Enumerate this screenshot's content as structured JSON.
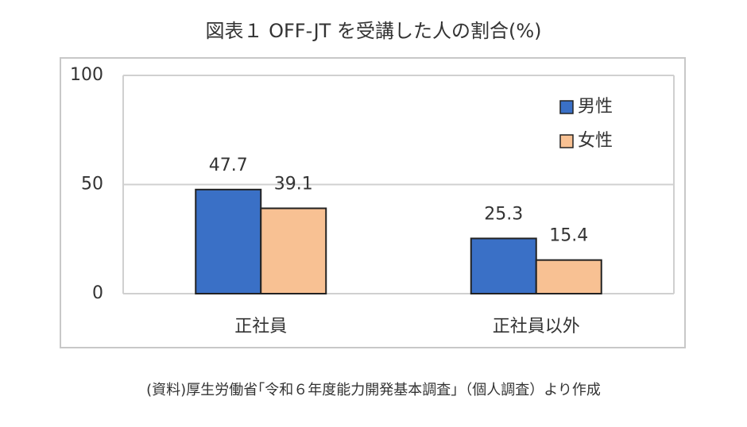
{
  "chart_data": {
    "type": "bar",
    "title": "図表１ OFF-JT を受講した人の割合(%)",
    "categories": [
      "正社員",
      "正社員以外"
    ],
    "series": [
      {
        "name": "男性",
        "color": "#3a70c6",
        "values": [
          47.7,
          25.3
        ]
      },
      {
        "name": "女性",
        "color": "#f8c193",
        "values": [
          39.1,
          15.4
        ]
      }
    ],
    "ylim": [
      0,
      100
    ],
    "yticks": [
      0,
      50,
      100
    ],
    "grid": true,
    "legend": "upper right",
    "note": "(資料)厚生労働省｢令和６年度能力開発基本調査｣（個人調査）より作成"
  }
}
